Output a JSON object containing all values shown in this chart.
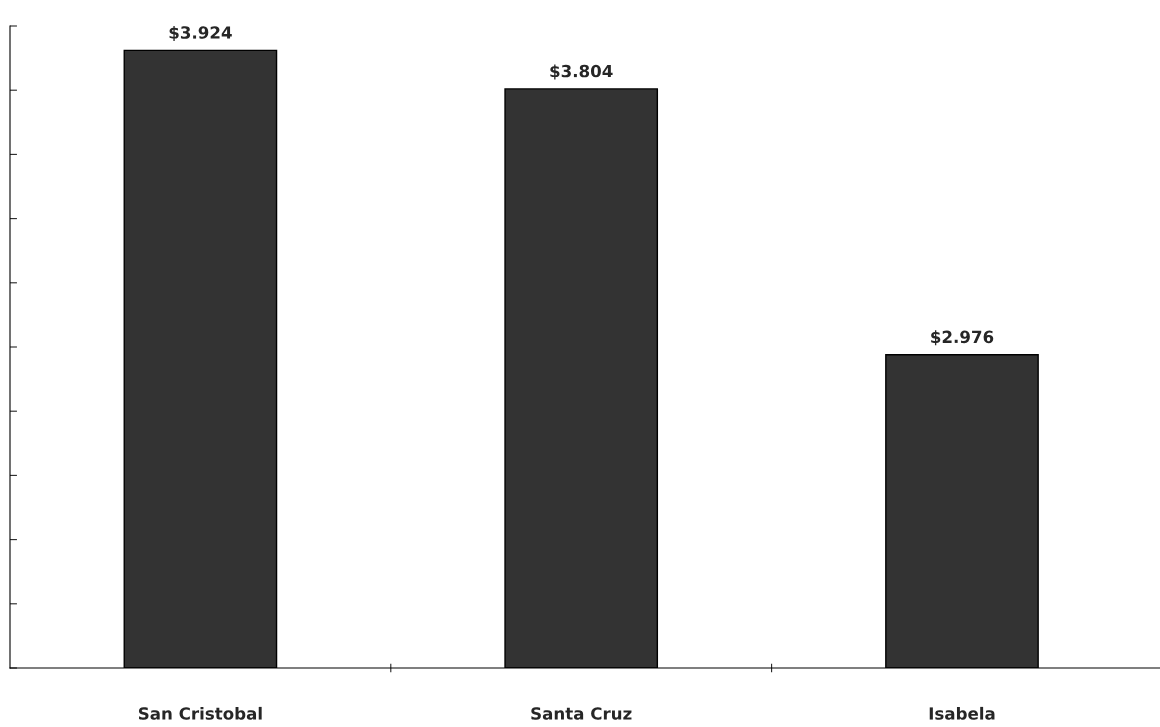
{
  "chart_data": {
    "type": "bar",
    "categories": [
      "San Cristobal",
      "Santa Cruz",
      "Isabela"
    ],
    "values": [
      3.924,
      3.804,
      2.976
    ],
    "value_labels": [
      "$3.924",
      "$3.804",
      "$2.976"
    ],
    "color": "#333333",
    "ylim": [
      2.0,
      4.0
    ],
    "tick_labels": "x",
    "grid": false,
    "legend": false
  }
}
